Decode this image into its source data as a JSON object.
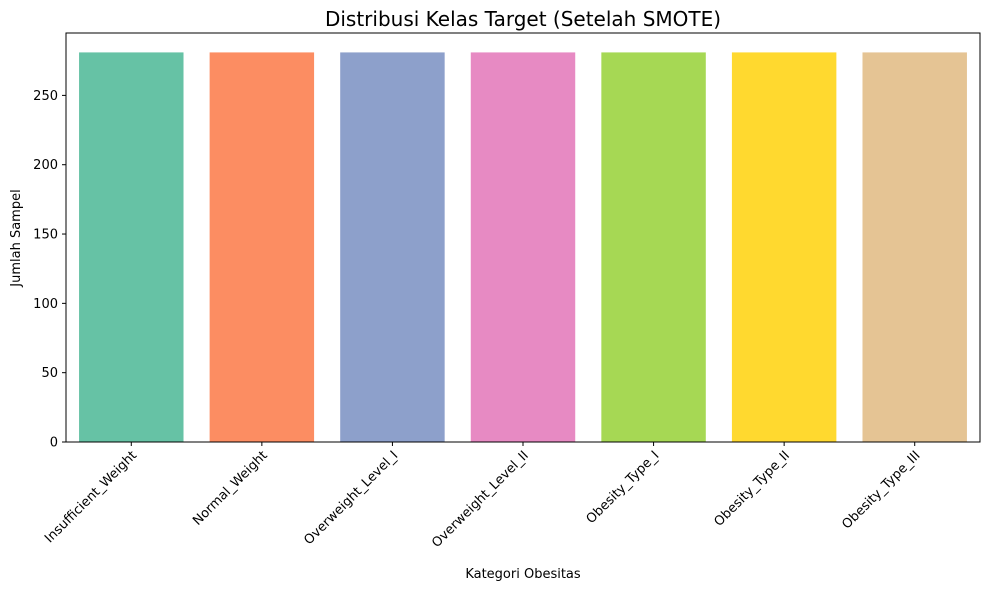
{
  "chart_data": {
    "type": "bar",
    "title": "Distribusi Kelas Target (Setelah SMOTE)",
    "xlabel": "Kategori Obesitas",
    "ylabel": "Jumlah Sampel",
    "categories": [
      "Insufficient_Weight",
      "Normal_Weight",
      "Overweight_Level_I",
      "Overweight_Level_II",
      "Obesity_Type_I",
      "Obesity_Type_II",
      "Obesity_Type_III"
    ],
    "values": [
      281,
      281,
      281,
      281,
      281,
      281,
      281
    ],
    "colors": [
      "#66c2a5",
      "#fc8d62",
      "#8da0cb",
      "#e78ac3",
      "#a6d854",
      "#ffd92f",
      "#e5c494"
    ],
    "ylim": [
      0,
      295
    ],
    "yticks": [
      0,
      50,
      100,
      150,
      200,
      250
    ],
    "grid": false,
    "legend": "none"
  }
}
